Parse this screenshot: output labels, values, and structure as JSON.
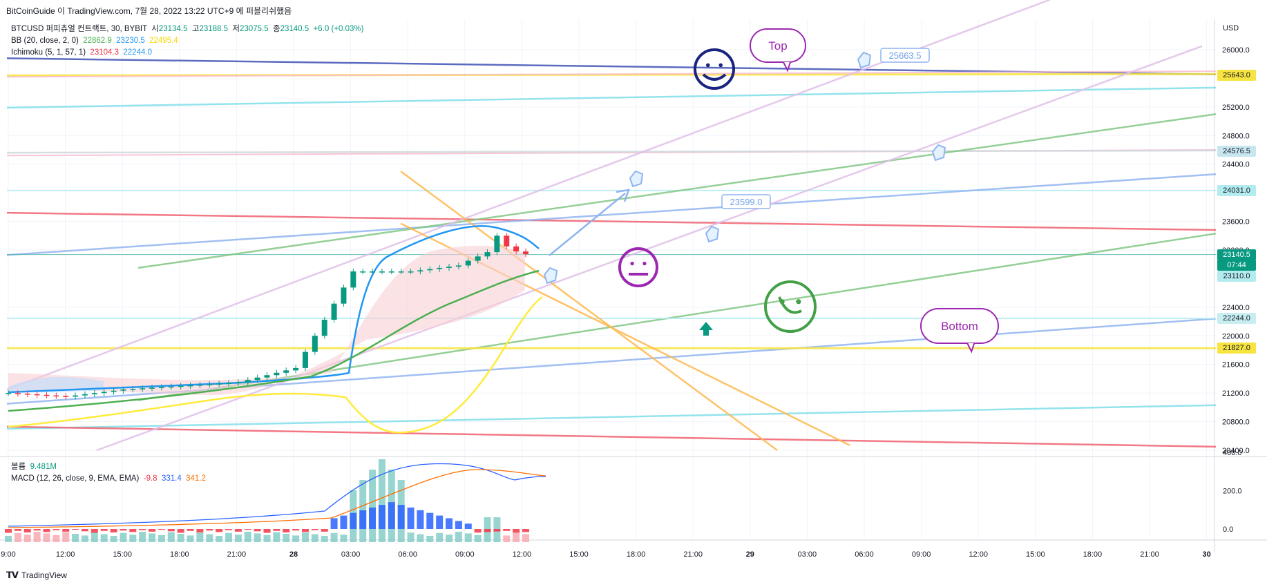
{
  "header": {
    "title": "BitCoinGuide 이 TradingView.com, 7월 28, 2022 13:22 UTC+9 에 퍼블리쉬했음"
  },
  "legend": {
    "symbol": "BTCUSD 퍼피츄얼 컨트랙트, 30, BYBIT",
    "open_label": "시",
    "open": "23134.5",
    "high_label": "고",
    "high": "23188.5",
    "low_label": "저",
    "low": "23075.5",
    "close_label": "종",
    "close": "23140.5",
    "change": "+6.0 (+0.03%)",
    "bb_label": "BB (20, close, 2, 0)",
    "bb_basis": "22862.9",
    "bb_upper": "23230.5",
    "bb_lower": "22495.4",
    "ichimoku_label": "Ichimoku (5, 1, 57, 1)",
    "ichimoku_a": "23104.3",
    "ichimoku_b": "22244.0",
    "volume_label": "볼륨",
    "volume": "9.481M",
    "macd_label": "MACD (12, 26, close, 9, EMA, EMA)",
    "macd_hist": "-9.8",
    "macd_line": "331.4",
    "macd_signal": "341.2"
  },
  "price_axis": {
    "currency": "USD",
    "ticks": [
      "26000.0",
      "25200.0",
      "24800.0",
      "24400.0",
      "23600.0",
      "22400.0",
      "22000.0",
      "21600.0",
      "21200.0",
      "20800.0",
      "20400.0"
    ],
    "partial_tick": "23200.0"
  },
  "price_labels": [
    {
      "text": "25643.0",
      "bg": "#f7e440",
      "fg": "#131722"
    },
    {
      "text": "24576.5",
      "bg": "#c8e6f0",
      "fg": "#131722"
    },
    {
      "text": "24031.0",
      "bg": "#b3ecef",
      "fg": "#131722"
    },
    {
      "text": "23140.5",
      "bg": "#089981",
      "fg": "#ffffff"
    },
    {
      "text": "07:44",
      "bg": "#089981",
      "fg": "#ffffff"
    },
    {
      "text": "23110.0",
      "bg": "#b3ecef",
      "fg": "#131722"
    },
    {
      "text": "22244.0",
      "bg": "#c8eef2",
      "fg": "#131722"
    },
    {
      "text": "21827.0",
      "bg": "#f7e440",
      "fg": "#131722"
    }
  ],
  "macd_axis": {
    "ticks": [
      "400.0",
      "200.0",
      "0.0"
    ]
  },
  "time_axis": {
    "labels": [
      "9:00",
      "12:00",
      "15:00",
      "18:00",
      "21:00",
      "28",
      "03:00",
      "06:00",
      "09:00",
      "12:00",
      "15:00",
      "18:00",
      "21:00",
      "29",
      "03:00",
      "06:00",
      "09:00",
      "12:00",
      "15:00",
      "18:00",
      "21:00",
      "30"
    ]
  },
  "annotations": {
    "top_bubble": "Top",
    "bottom_bubble": "Bottom",
    "callout_high": "25663.5",
    "callout_mid": "23599.0"
  },
  "colors": {
    "up": "#089981",
    "down": "#f23645",
    "bb_basis": "#4caf50",
    "bb_upper": "#2196f3",
    "bb_lower": "#ffeb3b",
    "ichi_a": "#f23645",
    "ichi_b": "#2196f3",
    "macd": "#2962ff",
    "signal": "#ff6d00"
  },
  "chart_data": {
    "type": "candlestick",
    "symbol": "BTCUSD",
    "interval": "30",
    "price_range": [
      20300,
      26400
    ],
    "x": [
      "27 9:00",
      "27 12:00",
      "27 15:00",
      "27 18:00",
      "27 21:00",
      "28 00:00",
      "28 03:00",
      "28 06:00",
      "28 09:00",
      "28 12:00"
    ],
    "close_approx": [
      21200,
      21150,
      21250,
      21300,
      21350,
      21550,
      22900,
      22900,
      23000,
      23140.5
    ],
    "last": {
      "open": 23134.5,
      "high": 23188.5,
      "low": 23075.5,
      "close": 23140.5
    },
    "horizontal_levels": [
      25643.0,
      24576.5,
      24031.0,
      23110.0,
      22244.0,
      21827.0
    ],
    "macd_range": [
      -60,
      430
    ]
  }
}
